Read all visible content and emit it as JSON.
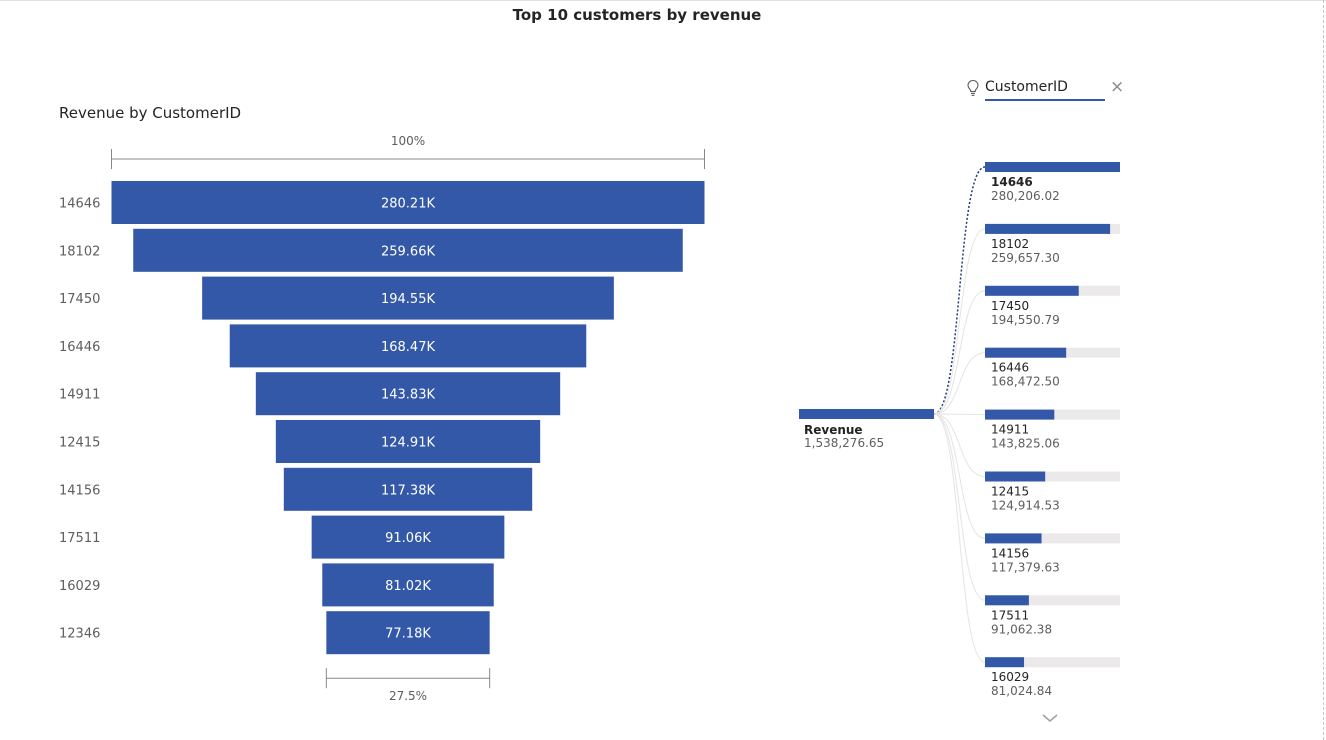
{
  "page": {
    "title": "Top 10 customers by revenue"
  },
  "funnel": {
    "title": "Revenue by CustomerID",
    "top_pct_label": "100%",
    "bottom_pct_label": "27.5%"
  },
  "decomposition": {
    "field_label": "CustomerID",
    "root": {
      "label": "Revenue",
      "value_text": "1,538,276.65",
      "value": 1538276.65
    },
    "items": [
      {
        "id": "14646",
        "value_text": "280,206.02",
        "value": 280206.02,
        "selected": true
      },
      {
        "id": "18102",
        "value_text": "259,657.30",
        "value": 259657.3
      },
      {
        "id": "17450",
        "value_text": "194,550.79",
        "value": 194550.79
      },
      {
        "id": "16446",
        "value_text": "168,472.50",
        "value": 168472.5
      },
      {
        "id": "14911",
        "value_text": "143,825.06",
        "value": 143825.06
      },
      {
        "id": "12415",
        "value_text": "124,914.53",
        "value": 124914.53
      },
      {
        "id": "14156",
        "value_text": "117,379.63",
        "value": 117379.63
      },
      {
        "id": "17511",
        "value_text": "91,062.38",
        "value": 91062.38
      },
      {
        "id": "16029",
        "value_text": "81,024.84",
        "value": 81024.84
      }
    ]
  },
  "colors": {
    "bar": "#3358a8",
    "track": "#ebe9ea",
    "axis": "#8a8886",
    "text": "#252423",
    "muted": "#605e5c"
  },
  "chart_data": {
    "type": "funnel",
    "title": "Revenue by CustomerID",
    "categories": [
      "14646",
      "18102",
      "17450",
      "16446",
      "14911",
      "12415",
      "14156",
      "17511",
      "16029",
      "12346"
    ],
    "values": [
      280210,
      259660,
      194550,
      168470,
      143830,
      124910,
      117380,
      91060,
      81020,
      77180
    ],
    "data_labels": [
      "280.21K",
      "259.66K",
      "194.55K",
      "168.47K",
      "143.83K",
      "124.91K",
      "117.38K",
      "91.06K",
      "81.02K",
      "77.18K"
    ],
    "first_to_last_pct": [
      "100%",
      "27.5%"
    ]
  }
}
